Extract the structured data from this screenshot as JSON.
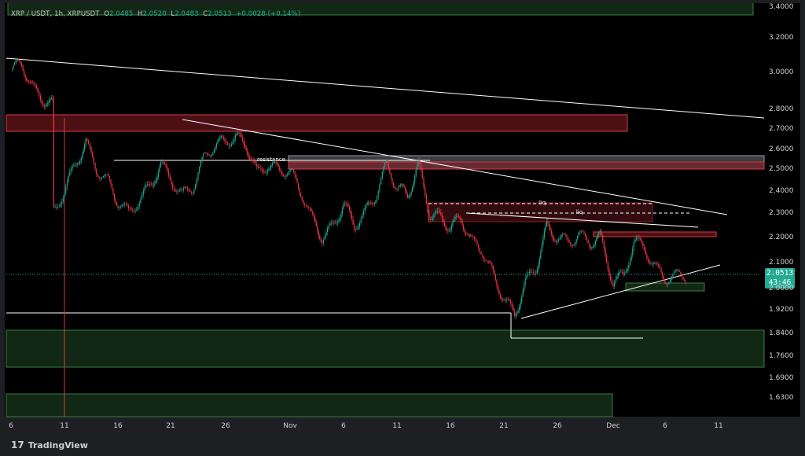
{
  "legend": {
    "ticker": "XRP / USDT, 1h, XRPUSDT",
    "o_key": "O",
    "o_val": "2.0485",
    "h_key": "H",
    "h_val": "2.0520",
    "l_key": "L",
    "l_val": "2.0483",
    "c_key": "C",
    "c_val": "2.0513",
    "change": "+0.0028 (+0.14%)"
  },
  "last_price": {
    "price": "2.0513",
    "countdown": "43:46"
  },
  "brand": {
    "logo": "17",
    "name": "TradingView"
  },
  "colors": {
    "background": "#1e1f23",
    "up": "#22ab94",
    "down": "#f23645",
    "supply_zone": "#8b1e24",
    "demand_zone": "#1f4a24",
    "trendline": "#ffffff"
  },
  "chart_data": {
    "type": "candlestick",
    "title": "XRP / USDT, 1h, XRPUSDT",
    "y_axis": {
      "ticks": [
        "3.4000",
        "3.2000",
        "3.0000",
        "2.8000",
        "2.7000",
        "2.6000",
        "2.5000",
        "2.4000",
        "2.3000",
        "2.2000",
        "2.1000",
        "2.0000",
        "1.9200",
        "1.8400",
        "1.7600",
        "1.6900",
        "1.6300"
      ],
      "scale": "log"
    },
    "x_axis": {
      "ticks": [
        "6",
        "11",
        "16",
        "21",
        "26",
        "Nov",
        "6",
        "11",
        "16",
        "21",
        "26",
        "Dec",
        "6",
        "11"
      ]
    },
    "annotations": [
      {
        "text": "resistance"
      },
      {
        "text": "liq"
      },
      {
        "text": "liq"
      }
    ],
    "price_path": [
      {
        "date": "Oct 6",
        "price": 3.02
      },
      {
        "date": "Oct 7",
        "price": 3.05
      },
      {
        "date": "Oct 8",
        "price": 2.91
      },
      {
        "date": "Oct 9",
        "price": 2.85
      },
      {
        "date": "Oct 10",
        "price": 2.82
      },
      {
        "date": "Oct 10",
        "price": 2.31
      },
      {
        "date": "Oct 11",
        "price": 2.4
      },
      {
        "date": "Oct 12",
        "price": 2.52
      },
      {
        "date": "Oct 13",
        "price": 2.63
      },
      {
        "date": "Oct 14",
        "price": 2.5
      },
      {
        "date": "Oct 15",
        "price": 2.45
      },
      {
        "date": "Oct 16",
        "price": 2.35
      },
      {
        "date": "Oct 17",
        "price": 2.3
      },
      {
        "date": "Oct 18",
        "price": 2.36
      },
      {
        "date": "Oct 19",
        "price": 2.42
      },
      {
        "date": "Oct 20",
        "price": 2.52
      },
      {
        "date": "Oct 21",
        "price": 2.45
      },
      {
        "date": "Oct 22",
        "price": 2.38
      },
      {
        "date": "Oct 23",
        "price": 2.42
      },
      {
        "date": "Oct 24",
        "price": 2.55
      },
      {
        "date": "Oct 25",
        "price": 2.62
      },
      {
        "date": "Oct 26",
        "price": 2.64
      },
      {
        "date": "Oct 27",
        "price": 2.66
      },
      {
        "date": "Oct 28",
        "price": 2.62
      },
      {
        "date": "Oct 29",
        "price": 2.48
      },
      {
        "date": "Oct 30",
        "price": 2.52
      },
      {
        "date": "Oct 31",
        "price": 2.5
      },
      {
        "date": "Nov 1",
        "price": 2.49
      },
      {
        "date": "Nov 2",
        "price": 2.4
      },
      {
        "date": "Nov 3",
        "price": 2.28
      },
      {
        "date": "Nov 4",
        "price": 2.2
      },
      {
        "date": "Nov 5",
        "price": 2.24
      },
      {
        "date": "Nov 6",
        "price": 2.34
      },
      {
        "date": "Nov 7",
        "price": 2.25
      },
      {
        "date": "Nov 8",
        "price": 2.3
      },
      {
        "date": "Nov 9",
        "price": 2.38
      },
      {
        "date": "Nov 10",
        "price": 2.52
      },
      {
        "date": "Nov 11",
        "price": 2.42
      },
      {
        "date": "Nov 12",
        "price": 2.38
      },
      {
        "date": "Nov 13",
        "price": 2.52
      },
      {
        "date": "Nov 14",
        "price": 2.3
      },
      {
        "date": "Nov 15",
        "price": 2.28
      },
      {
        "date": "Nov 16",
        "price": 2.24
      },
      {
        "date": "Nov 17",
        "price": 2.28
      },
      {
        "date": "Nov 18",
        "price": 2.18
      },
      {
        "date": "Nov 19",
        "price": 2.15
      },
      {
        "date": "Nov 20",
        "price": 2.05
      },
      {
        "date": "Nov 21",
        "price": 1.96
      },
      {
        "date": "Nov 22",
        "price": 1.9
      },
      {
        "date": "Nov 23",
        "price": 2.02
      },
      {
        "date": "Nov 24",
        "price": 2.08
      },
      {
        "date": "Nov 25",
        "price": 2.24
      },
      {
        "date": "Nov 26",
        "price": 2.2
      },
      {
        "date": "Nov 27",
        "price": 2.18
      },
      {
        "date": "Nov 28",
        "price": 2.21
      },
      {
        "date": "Nov 29",
        "price": 2.18
      },
      {
        "date": "Nov 30",
        "price": 2.2
      },
      {
        "date": "Dec 1",
        "price": 2.02
      },
      {
        "date": "Dec 2",
        "price": 2.05
      },
      {
        "date": "Dec 3",
        "price": 2.18
      },
      {
        "date": "Dec 4",
        "price": 2.16
      },
      {
        "date": "Dec 5",
        "price": 2.08
      },
      {
        "date": "Dec 6",
        "price": 2.04
      },
      {
        "date": "Dec 7",
        "price": 2.05
      },
      {
        "date": "Dec 8",
        "price": 2.0513
      }
    ]
  }
}
